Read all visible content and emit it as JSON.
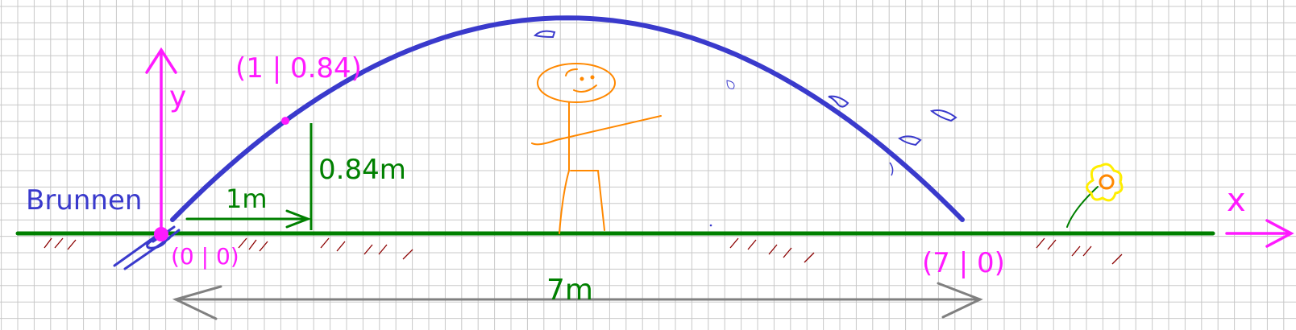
{
  "labels": {
    "y_axis": "y",
    "x_axis": "x",
    "fountain": "Brunnen",
    "origin": "(0 | 0)",
    "end_point": "(7 | 0)",
    "point_1": "(1 | 0.84)",
    "height_dim": "0.84m",
    "width_dim": "1m",
    "span_dim": "7m"
  },
  "parabola": {
    "x": [
      0,
      1,
      3.5,
      7
    ],
    "y": [
      0,
      0.84,
      1.47,
      0
    ]
  },
  "colors": {
    "grid": "#c8c8c8",
    "ground": "#008000",
    "arc": "#3a3acc",
    "axis": "#ff1aff",
    "person": "#ff8800",
    "dimension": "#808080",
    "flower": "#ffee00",
    "grass": "#8b0000"
  }
}
